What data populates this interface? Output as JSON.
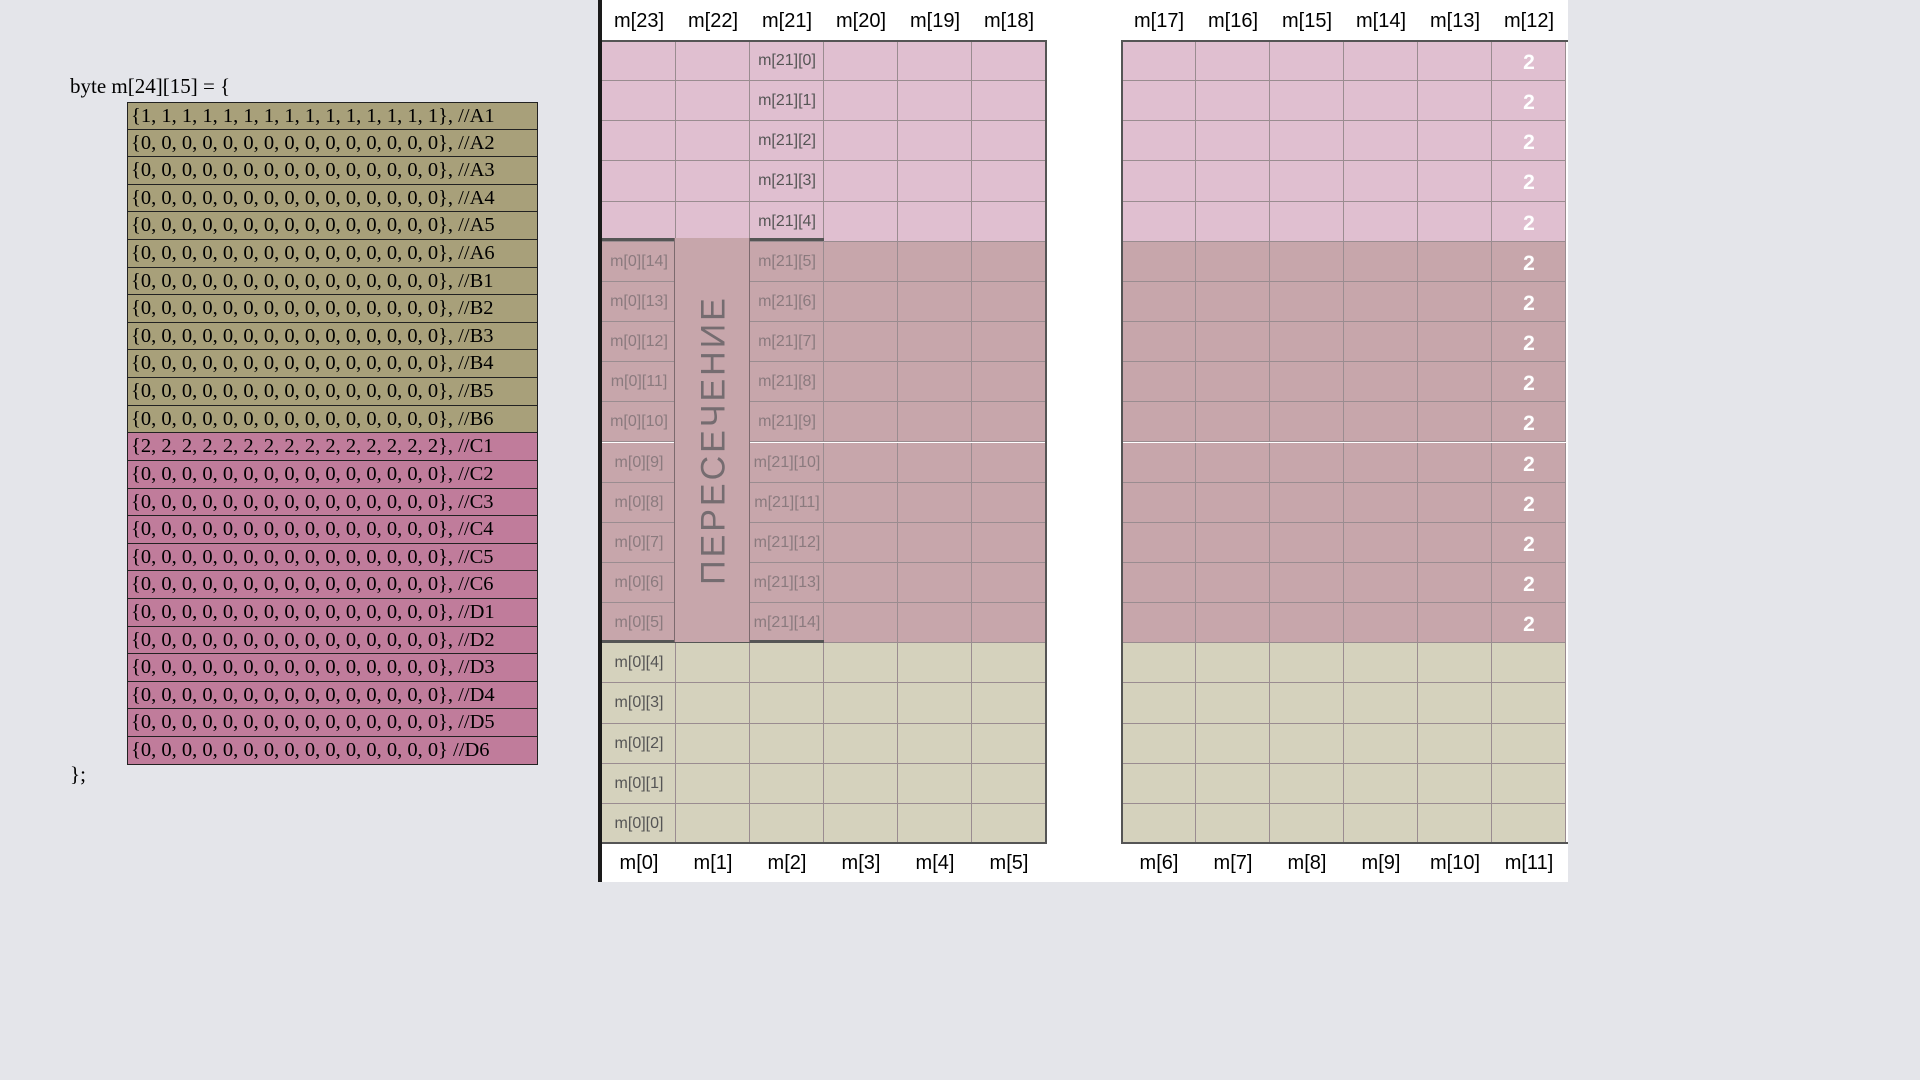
{
  "code": {
    "header": "byte m[24][15] = {",
    "footer": "};",
    "rows": [
      {
        "text": "{1, 1, 1, 1, 1, 1, 1, 1, 1, 1, 1, 1, 1, 1, 1}, //A1",
        "color": "olive"
      },
      {
        "text": "{0, 0, 0, 0, 0, 0, 0, 0, 0, 0, 0, 0, 0, 0, 0}, //A2",
        "color": "olive"
      },
      {
        "text": "{0, 0, 0, 0, 0, 0, 0, 0, 0, 0, 0, 0, 0, 0, 0}, //A3",
        "color": "olive"
      },
      {
        "text": "{0, 0, 0, 0, 0, 0, 0, 0, 0, 0, 0, 0, 0, 0, 0}, //A4",
        "color": "olive"
      },
      {
        "text": "{0, 0, 0, 0, 0, 0, 0, 0, 0, 0, 0, 0, 0, 0, 0}, //A5",
        "color": "olive"
      },
      {
        "text": "{0, 0, 0, 0, 0, 0, 0, 0, 0, 0, 0, 0, 0, 0, 0}, //A6",
        "color": "olive"
      },
      {
        "text": "{0, 0, 0, 0, 0, 0, 0, 0, 0, 0, 0, 0, 0, 0, 0}, //B1",
        "color": "olive"
      },
      {
        "text": "{0, 0, 0, 0, 0, 0, 0, 0, 0, 0, 0, 0, 0, 0, 0}, //B2",
        "color": "olive"
      },
      {
        "text": "{0, 0, 0, 0, 0, 0, 0, 0, 0, 0, 0, 0, 0, 0, 0}, //B3",
        "color": "olive"
      },
      {
        "text": "{0, 0, 0, 0, 0, 0, 0, 0, 0, 0, 0, 0, 0, 0, 0}, //B4",
        "color": "olive"
      },
      {
        "text": "{0, 0, 0, 0, 0, 0, 0, 0, 0, 0, 0, 0, 0, 0, 0}, //B5",
        "color": "olive"
      },
      {
        "text": "{0, 0, 0, 0, 0, 0, 0, 0, 0, 0, 0, 0, 0, 0, 0}, //B6",
        "color": "olive"
      },
      {
        "text": "{2, 2, 2, 2, 2, 2, 2, 2, 2, 2, 2, 2, 2, 2, 2}, //C1",
        "color": "mauve"
      },
      {
        "text": "{0, 0, 0, 0, 0, 0, 0, 0, 0, 0, 0, 0, 0, 0, 0}, //C2",
        "color": "mauve"
      },
      {
        "text": "{0, 0, 0, 0, 0, 0, 0, 0, 0, 0, 0, 0, 0, 0, 0}, //C3",
        "color": "mauve"
      },
      {
        "text": "{0, 0, 0, 0, 0, 0, 0, 0, 0, 0, 0, 0, 0, 0, 0}, //C4",
        "color": "mauve"
      },
      {
        "text": "{0, 0, 0, 0, 0, 0, 0, 0, 0, 0, 0, 0, 0, 0, 0}, //C5",
        "color": "mauve"
      },
      {
        "text": "{0, 0, 0, 0, 0, 0, 0, 0, 0, 0, 0, 0, 0, 0, 0}, //C6",
        "color": "mauve"
      },
      {
        "text": "{0, 0, 0, 0, 0, 0, 0, 0, 0, 0, 0, 0, 0, 0, 0}, //D1",
        "color": "mauve"
      },
      {
        "text": "{0, 0, 0, 0, 0, 0, 0, 0, 0, 0, 0, 0, 0, 0, 0}, //D2",
        "color": "mauve"
      },
      {
        "text": "{0, 0, 0, 0, 0, 0, 0, 0, 0, 0, 0, 0, 0, 0, 0}, //D3",
        "color": "mauve"
      },
      {
        "text": "{0, 0, 0, 0, 0, 0, 0, 0, 0, 0, 0, 0, 0, 0, 0}, //D4",
        "color": "mauve"
      },
      {
        "text": "{0, 0, 0, 0, 0, 0, 0, 0, 0, 0, 0, 0, 0, 0, 0}, //D5",
        "color": "mauve"
      },
      {
        "text": "{0, 0, 0, 0, 0, 0, 0, 0, 0, 0, 0, 0, 0, 0, 0} //D6",
        "color": "mauve"
      }
    ]
  },
  "grid": {
    "top_labels_left": [
      "m[23]",
      "m[22]",
      "m[21]",
      "m[20]",
      "m[19]",
      "m[18]"
    ],
    "top_labels_right": [
      "m[17]",
      "m[16]",
      "m[15]",
      "m[14]",
      "m[13]",
      "m[12]"
    ],
    "bottom_labels_left": [
      "m[0]",
      "m[1]",
      "m[2]",
      "m[3]",
      "m[4]",
      "m[5]"
    ],
    "bottom_labels_right": [
      "m[6]",
      "m[7]",
      "m[8]",
      "m[9]",
      "m[10]",
      "m[11]"
    ],
    "m21_cells": [
      "m[21][0]",
      "m[21][1]",
      "m[21][2]",
      "m[21][3]",
      "m[21][4]",
      "m[21][5]",
      "m[21][6]",
      "m[21][7]",
      "m[21][8]",
      "m[21][9]",
      "m[21][10]",
      "m[21][11]",
      "m[21][12]",
      "m[21][13]",
      "m[21][14]"
    ],
    "m0_cells": [
      "m[0][14]",
      "m[0][13]",
      "m[0][12]",
      "m[0][11]",
      "m[0][10]",
      "m[0][9]",
      "m[0][8]",
      "m[0][7]",
      "m[0][6]",
      "m[0][5]",
      "m[0][4]",
      "m[0][3]",
      "m[0][2]",
      "m[0][1]",
      "m[0][0]"
    ],
    "twos": [
      "2",
      "2",
      "2",
      "2",
      "2",
      "2",
      "2",
      "2",
      "2",
      "2",
      "2",
      "2",
      "2",
      "2",
      "2"
    ],
    "intersection_label": "ПЕРЕСЕЧЕНИЕ"
  },
  "colors": {
    "olive_code": "#a8a07a",
    "mauve_code": "#c07c9b",
    "pink_region": "#e0bfd0",
    "intersection_region": "#c7a6ab",
    "olive_region": "#d5d2bd"
  }
}
